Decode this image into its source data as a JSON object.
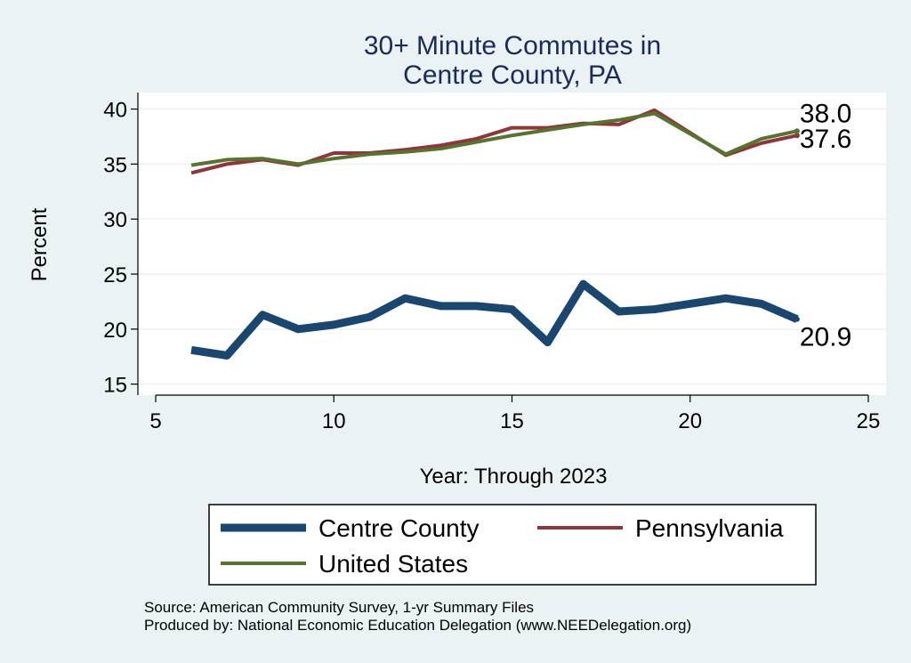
{
  "chart_data": {
    "type": "line",
    "title": "30+ Minute Commutes in",
    "subtitle": "Centre County, PA",
    "xlabel": "Year: Through 2023",
    "ylabel": "Percent",
    "xlim": [
      4.5,
      25.5
    ],
    "ylim": [
      14,
      41.5
    ],
    "x_ticks": [
      5,
      10,
      15,
      20,
      25
    ],
    "y_ticks": [
      15,
      20,
      25,
      30,
      35,
      40
    ],
    "grid": true,
    "legend_position": "bottom",
    "x": [
      6,
      7,
      8,
      9,
      10,
      11,
      12,
      13,
      14,
      15,
      16,
      17,
      18,
      19,
      21,
      22,
      23
    ],
    "series": [
      {
        "name": "Centre County",
        "color": "#1a476f",
        "values": [
          18.1,
          17.6,
          21.3,
          20.0,
          20.4,
          21.1,
          22.8,
          22.1,
          22.1,
          21.8,
          18.8,
          24.1,
          21.6,
          21.8,
          22.8,
          22.3,
          20.9
        ],
        "end_label": "20.9"
      },
      {
        "name": "Pennsylvania",
        "color": "#90353b",
        "values": [
          34.2,
          35.0,
          35.4,
          34.9,
          36.0,
          36.0,
          36.3,
          36.7,
          37.3,
          38.3,
          38.3,
          38.7,
          38.6,
          39.9,
          35.8,
          36.9,
          37.6
        ],
        "end_label": "37.6"
      },
      {
        "name": "United States",
        "color": "#55752f",
        "values": [
          34.9,
          35.4,
          35.5,
          35.0,
          35.5,
          35.9,
          36.1,
          36.4,
          37.0,
          37.6,
          38.1,
          38.6,
          39.0,
          39.6,
          35.9,
          37.3,
          38.0
        ],
        "end_label": "38.0"
      }
    ],
    "source_lines": [
      "Source: American Community Survey, 1-yr Summary Files",
      "Produced by: National Economic Education Delegation (www.NEEDelegation.org)"
    ]
  }
}
